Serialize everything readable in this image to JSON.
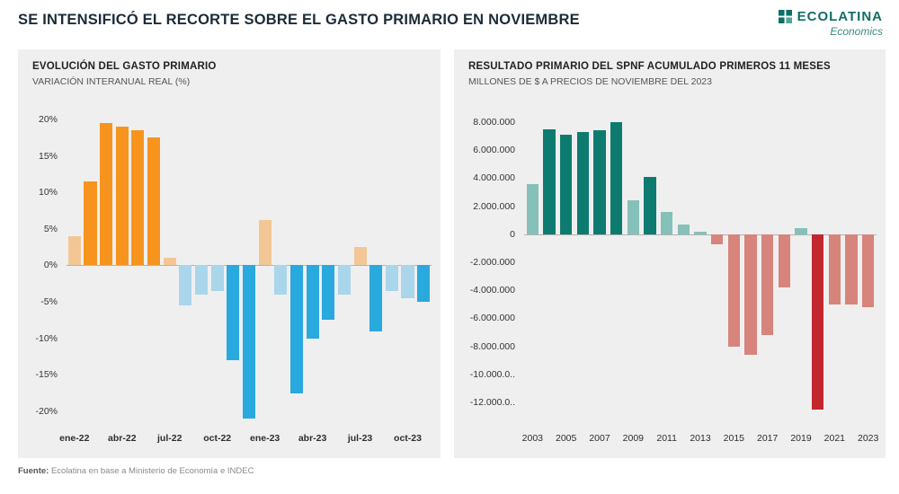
{
  "page": {
    "title": "SE INTENSIFICÓ EL RECORTE SOBRE EL GASTO PRIMARIO EN NOVIEMBRE",
    "footer_label": "Fuente:",
    "footer_text": " Ecolatina en base a Ministerio de Economía e INDEC"
  },
  "logo": {
    "name": "ECOLATINA",
    "tagline": "Economics",
    "color": "#0f6e66"
  },
  "chart_data": [
    {
      "id": "gasto",
      "type": "bar",
      "title": "EVOLUCIÓN DEL GASTO PRIMARIO",
      "subtitle": "VARIACIÓN INTERANUAL REAL (%)",
      "categories": [
        "ene-22",
        "feb-22",
        "mar-22",
        "abr-22",
        "may-22",
        "jun-22",
        "jul-22",
        "ago-22",
        "sep-22",
        "oct-22",
        "nov-22",
        "dic-22",
        "ene-23",
        "feb-23",
        "mar-23",
        "abr-23",
        "may-23",
        "jun-23",
        "jul-23",
        "ago-23",
        "sep-23",
        "oct-23",
        "nov-23"
      ],
      "values": [
        4,
        11.5,
        19.5,
        19,
        18.5,
        17.5,
        1,
        -5.5,
        -4,
        -3.5,
        -13,
        -21,
        6.2,
        -4,
        -17.5,
        -10,
        -7.5,
        -4,
        2.5,
        -9,
        -3.5,
        -4.5,
        -5
      ],
      "bar_colors": [
        "lightOrange",
        "orange",
        "orange",
        "orange",
        "orange",
        "orange",
        "lightOrange",
        "lightBlue",
        "lightBlue",
        "lightBlue",
        "blue",
        "blue",
        "lightOrange",
        "lightBlue",
        "blue",
        "blue",
        "blue",
        "lightBlue",
        "lightOrange",
        "blue",
        "lightBlue",
        "lightBlue",
        "blue"
      ],
      "palette": {
        "orange": "#F7941E",
        "lightOrange": "#F2C795",
        "blue": "#29A9DE",
        "lightBlue": "#A9D6EB"
      },
      "ylim": [
        -21.5,
        21
      ],
      "ylabel": "VARIACIÓN INTERANUAL REAL (%)",
      "grid": false,
      "legend": "none",
      "bar_frac": 0.8,
      "yticks": [
        {
          "value": 20,
          "label": "20%"
        },
        {
          "value": 15,
          "label": "15%"
        },
        {
          "value": 10,
          "label": "10%"
        },
        {
          "value": 5,
          "label": "5%"
        },
        {
          "value": 0,
          "label": "0%"
        },
        {
          "value": -5,
          "label": "-5%"
        },
        {
          "value": -10,
          "label": "-10%"
        },
        {
          "value": -15,
          "label": "-15%"
        },
        {
          "value": -20,
          "label": "-20%"
        }
      ],
      "xticks": [
        {
          "index": 0,
          "label": "ene-22"
        },
        {
          "index": 3,
          "label": "abr-22"
        },
        {
          "index": 6,
          "label": "jul-22"
        },
        {
          "index": 9,
          "label": "oct-22"
        },
        {
          "index": 12,
          "label": "ene-23"
        },
        {
          "index": 15,
          "label": "abr-23"
        },
        {
          "index": 18,
          "label": "jul-23"
        },
        {
          "index": 21,
          "label": "oct-23"
        }
      ]
    },
    {
      "id": "resultado",
      "type": "bar",
      "title": "RESULTADO PRIMARIO DEL SPNF ACUMULADO PRIMEROS 11 MESES",
      "subtitle": "MILLONES DE $ A PRECIOS DE NOVIEMBRE DEL 2023",
      "categories": [
        "2003",
        "2004",
        "2005",
        "2006",
        "2007",
        "2008",
        "2009",
        "2010",
        "2011",
        "2012",
        "2013",
        "2014",
        "2015",
        "2016",
        "2017",
        "2018",
        "2019",
        "2020",
        "2021",
        "2022",
        "2023"
      ],
      "values": [
        3600000,
        7500000,
        7100000,
        7300000,
        7400000,
        8000000,
        2400000,
        4100000,
        1600000,
        700000,
        150000,
        -700000,
        -8000000,
        -8600000,
        -7200000,
        -3800000,
        450000,
        -12500000,
        -5000000,
        -5000000,
        -5200000
      ],
      "values_scale_note": "millones de $",
      "bar_colors": [
        "ltTeal",
        "teal",
        "teal",
        "teal",
        "teal",
        "teal",
        "ltTeal",
        "teal",
        "ltTeal",
        "ltTeal",
        "ltTeal",
        "pink",
        "pink",
        "pink",
        "pink",
        "pink",
        "ltTeal",
        "red",
        "pink",
        "pink",
        "pink"
      ],
      "palette": {
        "teal": "#0E7B70",
        "ltTeal": "#85C0B9",
        "pink": "#D6847C",
        "red": "#C1272D"
      },
      "ylim": [
        -13400000,
        8700000
      ],
      "ylabel": "MILLONES DE $ A PRECIOS DE NOVIEMBRE DEL 2023",
      "grid": false,
      "legend": "none",
      "bar_frac": 0.72,
      "yticks": [
        {
          "value": 8000000,
          "label": "8.000.000"
        },
        {
          "value": 6000000,
          "label": "6.000.000"
        },
        {
          "value": 4000000,
          "label": "4.000.000"
        },
        {
          "value": 2000000,
          "label": "2.000.000"
        },
        {
          "value": 0,
          "label": "0"
        },
        {
          "value": -2000000,
          "label": "-2.000.000"
        },
        {
          "value": -4000000,
          "label": "-4.000.000"
        },
        {
          "value": -6000000,
          "label": "-6.000.000"
        },
        {
          "value": -8000000,
          "label": "-8.000.000"
        },
        {
          "value": -10000000,
          "label": "-10.000.0.."
        },
        {
          "value": -12000000,
          "label": "-12.000.0.."
        }
      ],
      "xticks": [
        {
          "index": 0,
          "label": "2003"
        },
        {
          "index": 2,
          "label": "2005"
        },
        {
          "index": 4,
          "label": "2007"
        },
        {
          "index": 6,
          "label": "2009"
        },
        {
          "index": 8,
          "label": "2011"
        },
        {
          "index": 10,
          "label": "2013"
        },
        {
          "index": 12,
          "label": "2015"
        },
        {
          "index": 14,
          "label": "2017"
        },
        {
          "index": 16,
          "label": "2019"
        },
        {
          "index": 18,
          "label": "2021"
        },
        {
          "index": 20,
          "label": "2023"
        }
      ]
    }
  ]
}
